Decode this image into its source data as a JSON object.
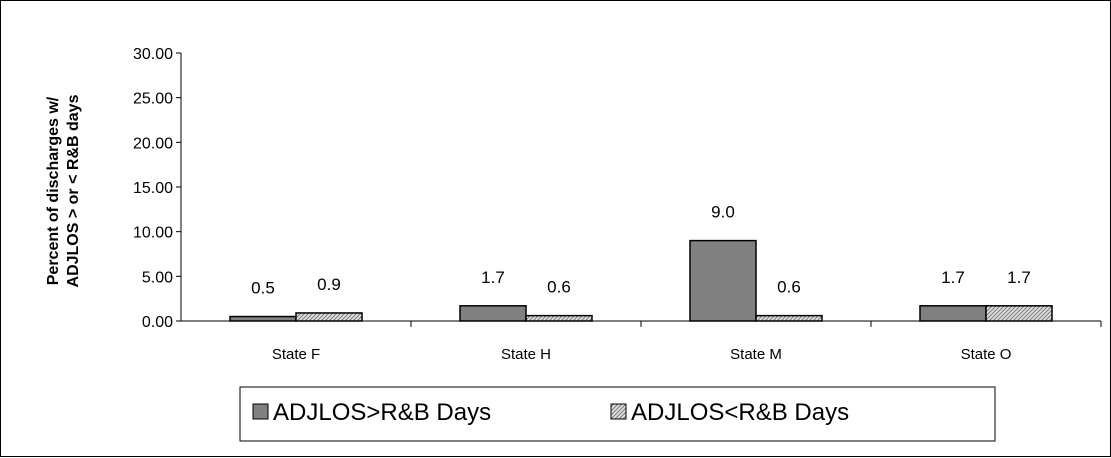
{
  "chart_data": {
    "type": "bar",
    "categories": [
      "State F",
      "State H",
      "State M",
      "State O"
    ],
    "series": [
      {
        "name": "ADJLOS>R&B Days",
        "values": [
          0.5,
          1.7,
          9.0,
          1.7
        ],
        "labels": [
          "0.5",
          "1.7",
          "9.0",
          "1.7"
        ],
        "color": "#808080",
        "pattern": "solid"
      },
      {
        "name": "ADJLOS<R&B Days",
        "values": [
          0.9,
          0.6,
          0.6,
          1.7
        ],
        "labels": [
          "0.9",
          "0.6",
          "0.6",
          "1.7"
        ],
        "color": "#c0c0c0",
        "pattern": "hatch"
      }
    ],
    "ylabel_lines": [
      "Percent of discharges w/",
      "ADJLOS > or < R&B days"
    ],
    "yticks": [
      "0.00",
      "5.00",
      "10.00",
      "15.00",
      "20.00",
      "25.00",
      "30.00"
    ],
    "ylim": [
      0,
      30
    ],
    "grid": false,
    "legend_position": "bottom"
  }
}
